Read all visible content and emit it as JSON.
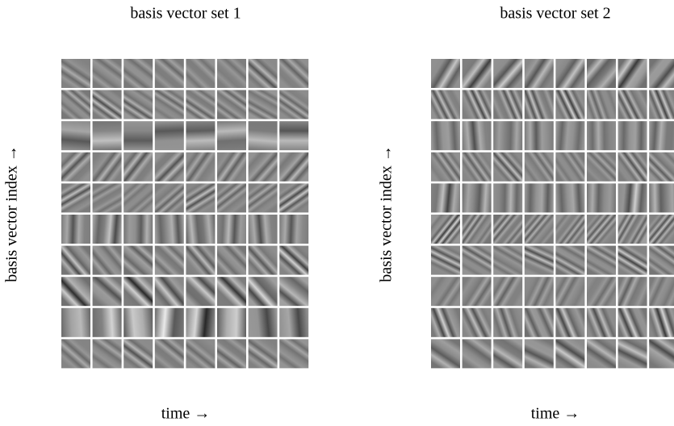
{
  "panels": [
    {
      "title": "basis vector set 1",
      "y_label": "basis vector index →",
      "x_label": "time →"
    },
    {
      "title": "basis vector set 2",
      "y_label": "basis vector index →",
      "x_label": "time →"
    }
  ]
}
